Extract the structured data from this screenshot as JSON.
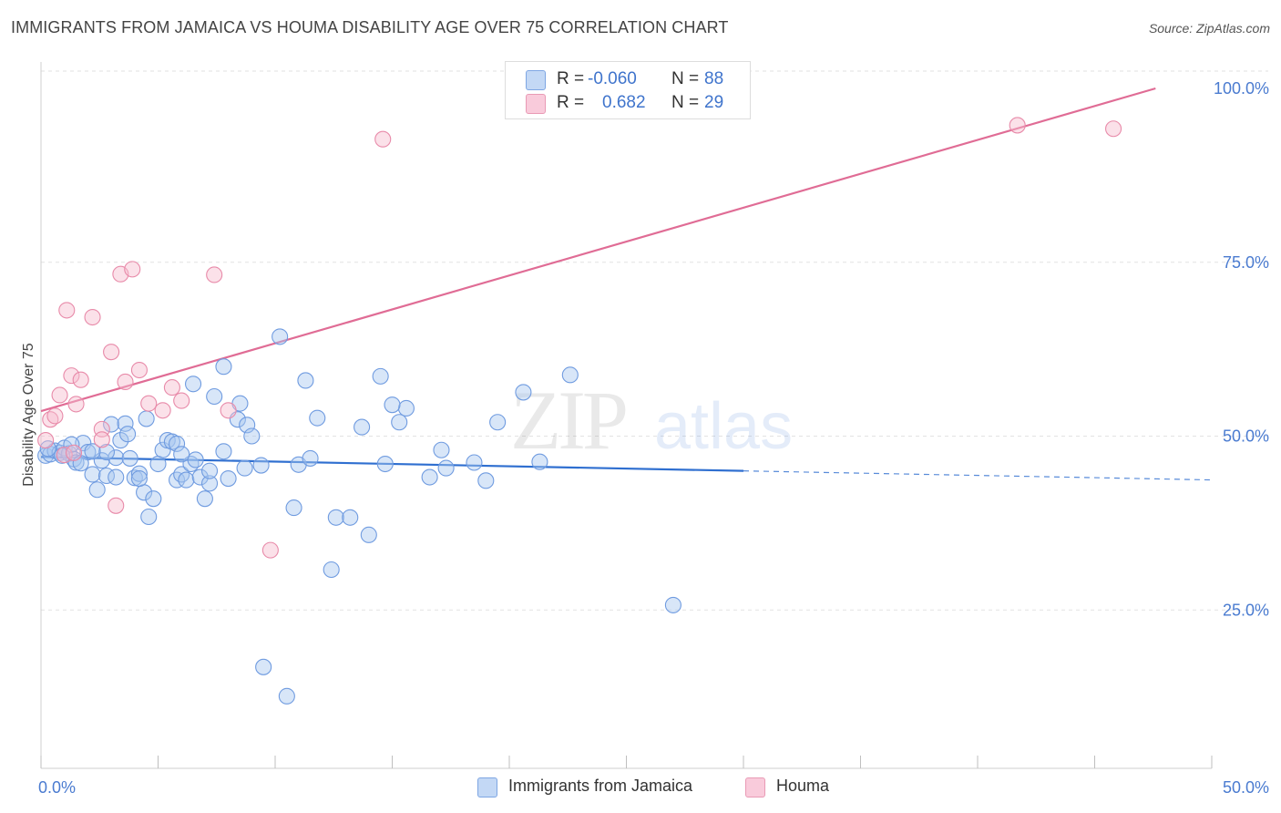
{
  "title": "IMMIGRANTS FROM JAMAICA VS HOUMA DISABILITY AGE OVER 75 CORRELATION CHART",
  "source": "Source: ZipAtlas.com",
  "watermark": {
    "zip": "ZIP",
    "atlas": "atlas"
  },
  "legend": {
    "r_label": "R =",
    "n_label": "N =",
    "rows": [
      {
        "r": "-0.060",
        "n": "88",
        "color": "#a9c7f0",
        "stroke": "#6f9be0"
      },
      {
        "r": "0.682",
        "n": "29",
        "color": "#f6bccf",
        "stroke": "#e88aa9"
      }
    ]
  },
  "chart_data": {
    "type": "scatter",
    "title": "IMMIGRANTS FROM JAMAICA VS HOUMA DISABILITY AGE OVER 75 CORRELATION CHART",
    "xlabel": "",
    "ylabel": "Disability Age Over 75",
    "xlim": [
      0,
      50
    ],
    "ylim": [
      0,
      105
    ],
    "x_tick_labels": [
      "0.0%",
      "50.0%"
    ],
    "y_ticks": [
      25,
      50,
      75,
      100
    ],
    "y_tick_labels": [
      "25.0%",
      "50.0%",
      "75.0%",
      "100.0%"
    ],
    "grid": true,
    "series": [
      {
        "name": "Immigrants from Jamaica",
        "color": "#a9c7f0",
        "stroke": "#6f9be0",
        "line_color": "#2f6fd0",
        "trend": {
          "x0": 0,
          "y0": 47.0,
          "x1": 30,
          "y1": 45.0,
          "dash_to": 50,
          "dash_y": 43.7
        },
        "points": [
          [
            0.2,
            47.2
          ],
          [
            0.4,
            47.4
          ],
          [
            0.6,
            47.9
          ],
          [
            0.8,
            47.6
          ],
          [
            1.0,
            48.3
          ],
          [
            1.2,
            47.5
          ],
          [
            1.4,
            46.7
          ],
          [
            1.5,
            46.2
          ],
          [
            1.8,
            49.0
          ],
          [
            2.0,
            47.7
          ],
          [
            2.2,
            44.5
          ],
          [
            2.4,
            42.3
          ],
          [
            2.6,
            46.5
          ],
          [
            2.8,
            44.3
          ],
          [
            3.0,
            51.7
          ],
          [
            3.2,
            46.9
          ],
          [
            3.4,
            49.4
          ],
          [
            3.6,
            51.8
          ],
          [
            3.8,
            46.8
          ],
          [
            4.0,
            44.0
          ],
          [
            4.2,
            44.6
          ],
          [
            4.4,
            41.9
          ],
          [
            4.6,
            38.4
          ],
          [
            4.8,
            41.0
          ],
          [
            5.0,
            46.0
          ],
          [
            5.2,
            48.0
          ],
          [
            5.4,
            49.4
          ],
          [
            5.6,
            49.2
          ],
          [
            5.8,
            43.7
          ],
          [
            6.0,
            44.5
          ],
          [
            6.2,
            43.7
          ],
          [
            6.4,
            46.0
          ],
          [
            6.6,
            46.6
          ],
          [
            6.8,
            44.1
          ],
          [
            7.0,
            41.0
          ],
          [
            7.2,
            43.2
          ],
          [
            7.4,
            55.7
          ],
          [
            7.8,
            47.8
          ],
          [
            8.0,
            43.9
          ],
          [
            8.4,
            52.4
          ],
          [
            8.7,
            45.4
          ],
          [
            9.4,
            45.8
          ],
          [
            10.2,
            64.3
          ],
          [
            11.0,
            45.9
          ],
          [
            11.3,
            58.0
          ],
          [
            12.6,
            38.3
          ],
          [
            13.2,
            38.3
          ],
          [
            14.0,
            35.8
          ],
          [
            14.5,
            58.6
          ],
          [
            15.3,
            52.0
          ],
          [
            15.6,
            54.0
          ],
          [
            16.6,
            44.1
          ],
          [
            17.1,
            48.0
          ],
          [
            17.3,
            45.4
          ],
          [
            18.5,
            46.2
          ],
          [
            19.0,
            43.6
          ],
          [
            19.5,
            52.0
          ],
          [
            20.6,
            56.3
          ],
          [
            21.3,
            46.3
          ],
          [
            22.6,
            58.8
          ],
          [
            27.0,
            25.7
          ],
          [
            10.8,
            39.7
          ],
          [
            12.4,
            30.8
          ],
          [
            9.5,
            16.8
          ],
          [
            10.5,
            12.6
          ],
          [
            5.8,
            48.9
          ],
          [
            6.0,
            47.4
          ],
          [
            0.3,
            48.2
          ],
          [
            3.7,
            50.3
          ],
          [
            8.5,
            54.7
          ],
          [
            7.8,
            60.0
          ],
          [
            2.8,
            47.7
          ],
          [
            3.2,
            44.1
          ],
          [
            4.2,
            43.9
          ],
          [
            2.2,
            47.8
          ],
          [
            1.7,
            46.1
          ],
          [
            14.7,
            46.0
          ],
          [
            11.5,
            46.8
          ],
          [
            7.2,
            45.0
          ],
          [
            6.5,
            57.5
          ],
          [
            8.8,
            51.6
          ],
          [
            11.8,
            52.6
          ],
          [
            13.7,
            51.3
          ],
          [
            15.0,
            54.5
          ],
          [
            9.0,
            50.0
          ],
          [
            4.5,
            52.5
          ],
          [
            1.3,
            48.8
          ],
          [
            0.9,
            47.2
          ]
        ]
      },
      {
        "name": "Houma",
        "color": "#f6bccf",
        "stroke": "#e88aa9",
        "line_color": "#e06c95",
        "trend": {
          "x0": 0,
          "y0": 53.6,
          "x1": 47.6,
          "y1": 100.0
        },
        "points": [
          [
            0.4,
            52.4
          ],
          [
            0.6,
            52.9
          ],
          [
            0.8,
            55.9
          ],
          [
            1.0,
            47.3
          ],
          [
            1.1,
            68.1
          ],
          [
            1.3,
            58.7
          ],
          [
            1.5,
            54.6
          ],
          [
            1.7,
            58.1
          ],
          [
            2.2,
            67.1
          ],
          [
            2.6,
            51.0
          ],
          [
            3.0,
            62.1
          ],
          [
            3.2,
            40.0
          ],
          [
            3.4,
            73.3
          ],
          [
            3.6,
            57.8
          ],
          [
            3.9,
            74.0
          ],
          [
            4.2,
            59.5
          ],
          [
            4.6,
            54.7
          ],
          [
            5.2,
            53.7
          ],
          [
            5.6,
            57.0
          ],
          [
            6.0,
            55.1
          ],
          [
            7.4,
            73.2
          ],
          [
            8.0,
            53.7
          ],
          [
            9.8,
            33.6
          ],
          [
            14.6,
            92.7
          ],
          [
            41.7,
            94.7
          ],
          [
            45.8,
            94.2
          ],
          [
            0.2,
            49.4
          ],
          [
            1.4,
            47.6
          ],
          [
            2.6,
            49.5
          ]
        ]
      }
    ]
  }
}
